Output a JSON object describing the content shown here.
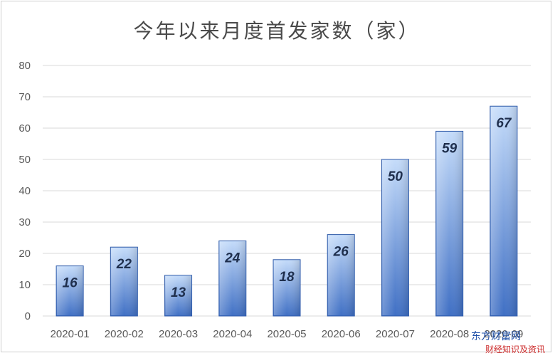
{
  "chart_data": {
    "type": "bar",
    "title": "今年以来月度首发家数（家）",
    "categories": [
      "2020-01",
      "2020-02",
      "2020-03",
      "2020-04",
      "2020-05",
      "2020-06",
      "2020-07",
      "2020-08",
      "2020-09"
    ],
    "values": [
      16,
      22,
      13,
      24,
      18,
      26,
      50,
      59,
      67
    ],
    "data_labels": [
      "16",
      "22",
      "13",
      "24",
      "18",
      "26",
      "50",
      "59",
      "67"
    ],
    "yticks": [
      "0",
      "10",
      "20",
      "30",
      "40",
      "50",
      "60",
      "70",
      "80"
    ],
    "ylim": [
      0,
      80
    ],
    "xlabel": "",
    "ylabel": "",
    "grid": true,
    "legend": "none",
    "colors": {
      "bar_top": "#c5dcfa",
      "bar_bottom": "#3f6fc4",
      "bar_edge": "#2f5aa8",
      "grid": "#d9d9d9"
    }
  },
  "watermark": {
    "line1": "东方财富网",
    "line2": "财经知识及资讯"
  }
}
